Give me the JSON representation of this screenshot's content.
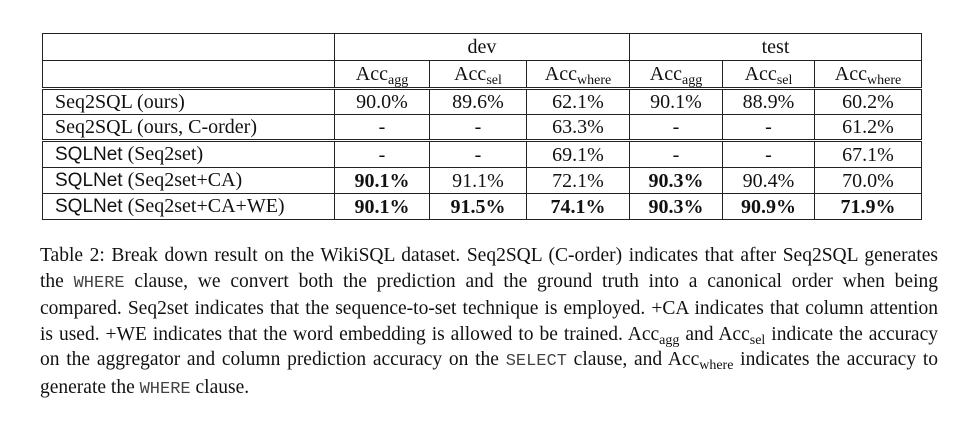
{
  "table": {
    "groups": [
      "dev",
      "test"
    ],
    "columns": [
      {
        "base": "Acc",
        "sub": "agg"
      },
      {
        "base": "Acc",
        "sub": "sel"
      },
      {
        "base": "Acc",
        "sub": "where"
      },
      {
        "base": "Acc",
        "sub": "agg"
      },
      {
        "base": "Acc",
        "sub": "sel"
      },
      {
        "base": "Acc",
        "sub": "where"
      }
    ],
    "rows": [
      {
        "label": {
          "text": "Seq2SQL (ours)"
        },
        "cells": [
          "90.0%",
          "89.6%",
          "62.1%",
          "90.1%",
          "88.9%",
          "60.2%"
        ],
        "bold": [
          false,
          false,
          false,
          false,
          false,
          false
        ]
      },
      {
        "label": {
          "text": "Seq2SQL (ours, C-order)"
        },
        "cells": [
          "-",
          "-",
          "63.3%",
          "-",
          "-",
          "61.2%"
        ],
        "bold": [
          false,
          false,
          false,
          false,
          false,
          false
        ]
      },
      {
        "label": {
          "sans": "SQLNet",
          "text": "(Seq2set)"
        },
        "cells": [
          "-",
          "-",
          "69.1%",
          "-",
          "-",
          "67.1%"
        ],
        "bold": [
          false,
          false,
          false,
          false,
          false,
          false
        ]
      },
      {
        "label": {
          "sans": "SQLNet",
          "text": "(Seq2set+CA)"
        },
        "cells": [
          "90.1%",
          "91.1%",
          "72.1%",
          "90.3%",
          "90.4%",
          "70.0%"
        ],
        "bold": [
          true,
          false,
          false,
          true,
          false,
          false
        ]
      },
      {
        "label": {
          "sans": "SQLNet",
          "text": "(Seq2set+CA+WE)"
        },
        "cells": [
          "90.1%",
          "91.5%",
          "74.1%",
          "90.3%",
          "90.9%",
          "71.9%"
        ],
        "bold": [
          true,
          true,
          true,
          true,
          true,
          true
        ]
      }
    ]
  },
  "caption": [
    {
      "text": "Table 2: Break down result on the WikiSQL dataset. Seq2SQL (C-order) indicates that after Seq2SQL generates the "
    },
    {
      "text": "WHERE",
      "style": "mono"
    },
    {
      "text": " clause, we convert both the prediction and the ground truth into a canonical order when being compared. Seq2set indicates that the sequence-to-set technique is employed. +CA indicates that column attention is used. +WE indicates that the word embedding is allowed to be trained. Acc"
    },
    {
      "text": "agg",
      "style": "sub"
    },
    {
      "text": " and Acc"
    },
    {
      "text": "sel",
      "style": "sub"
    },
    {
      "text": " indicate the accuracy on the aggregator and column prediction accuracy on the "
    },
    {
      "text": "SELECT",
      "style": "mono"
    },
    {
      "text": " clause, and Acc"
    },
    {
      "text": "where",
      "style": "sub"
    },
    {
      "text": " indicates the accuracy to generate the "
    },
    {
      "text": "WHERE",
      "style": "mono"
    },
    {
      "text": " clause."
    }
  ]
}
